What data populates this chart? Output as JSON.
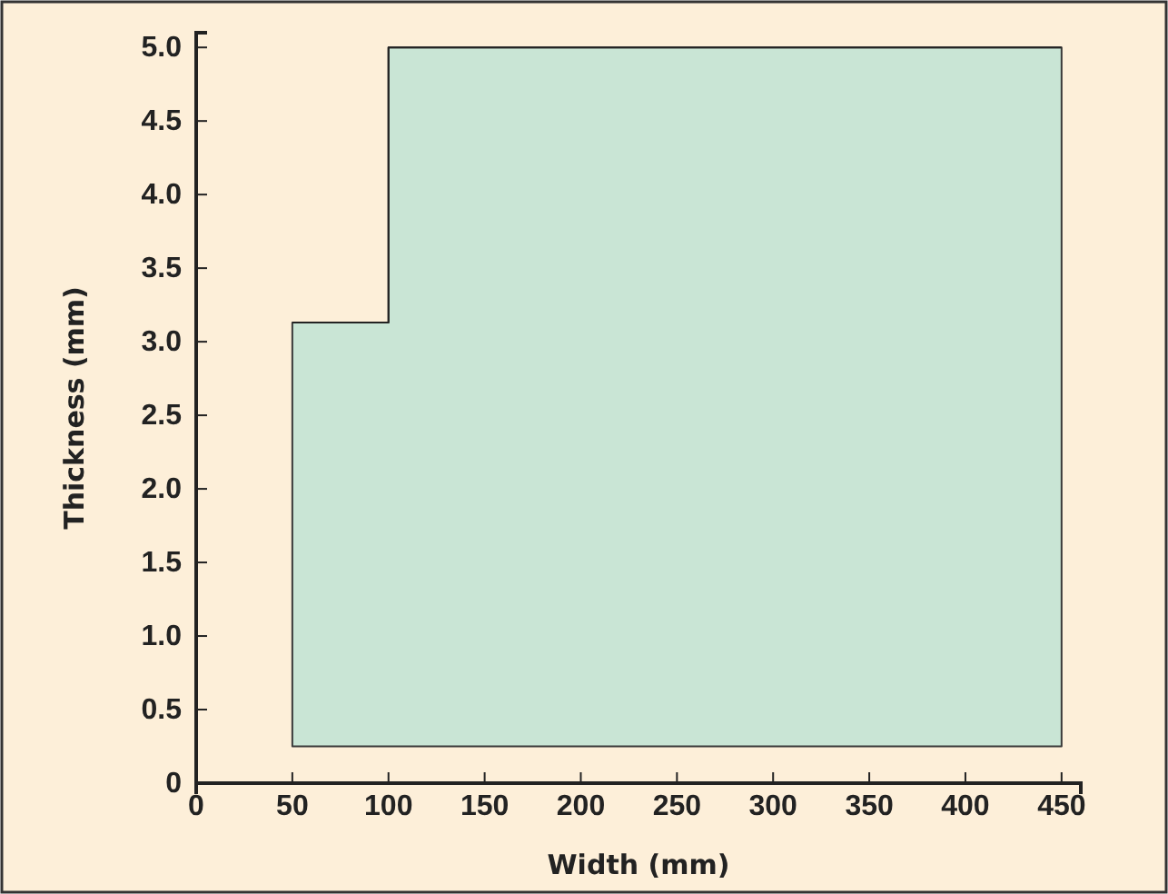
{
  "chart_data": {
    "type": "line",
    "xlabel": "Width (mm)",
    "ylabel": "Thickness (mm)",
    "series": [
      {
        "color": "#222222",
        "x": [
          50,
          100,
          100,
          450
        ],
        "values": [
          3.13,
          3.13,
          5,
          5
        ],
        "lower": [
          0.25,
          0.25,
          0.25,
          0.25
        ],
        "upper": [
          3.13,
          3.13,
          5,
          5
        ]
      }
    ],
    "xlim": [
      0,
      460
    ],
    "xticks": [
      0,
      50,
      100,
      150,
      200,
      250,
      300,
      350,
      400,
      450
    ],
    "ylim": [
      0,
      5.1
    ],
    "yticks": [
      0,
      {
        "value": 0.5,
        "label": "0.5"
      },
      {
        "value": 1,
        "label": "1.0"
      },
      {
        "value": 1.5,
        "label": "1.5"
      },
      {
        "value": 2,
        "label": "2.0"
      },
      {
        "value": 2.5,
        "label": "2.5"
      },
      {
        "value": 3,
        "label": "3.0"
      },
      {
        "value": 3.5,
        "label": "3.5"
      },
      {
        "value": 4,
        "label": "4.0"
      },
      {
        "value": 4.5,
        "label": "4.5"
      },
      {
        "value": 5,
        "label": "5.0"
      }
    ],
    "grid": false
  }
}
